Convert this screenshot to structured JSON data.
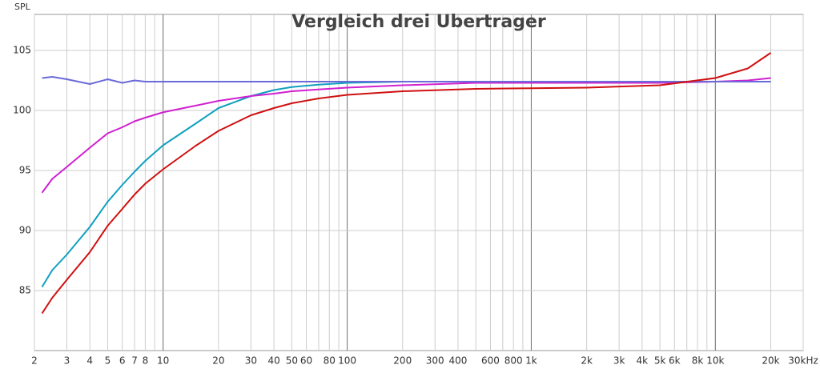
{
  "chart_data": {
    "type": "line",
    "title": "Vergleich drei Ubertrager",
    "y_label": "SPL",
    "log_x": true,
    "xlim": [
      2,
      30000
    ],
    "xticks": [
      2,
      3,
      4,
      5,
      6,
      7,
      8,
      10,
      20,
      30,
      40,
      50,
      60,
      80,
      100,
      200,
      300,
      400,
      600,
      800,
      {
        "value": 1000,
        "label": "1k"
      },
      {
        "value": 2000,
        "label": "2k"
      },
      {
        "value": 3000,
        "label": "3k"
      },
      {
        "value": 4000,
        "label": "4k"
      },
      {
        "value": 5000,
        "label": "5k"
      },
      {
        "value": 6000,
        "label": "6k"
      },
      {
        "value": 8000,
        "label": "8k"
      },
      {
        "value": 10000,
        "label": "10k"
      },
      {
        "value": 20000,
        "label": "20k"
      },
      {
        "value": 30000,
        "label": "30kHz"
      }
    ],
    "x_minor_gridlines": [
      9,
      70,
      90,
      500,
      700,
      900,
      7000,
      9000
    ],
    "x_major_gridlines": [
      10,
      100,
      1000,
      10000
    ],
    "ylim": [
      80,
      108
    ],
    "yticks": [
      85,
      90,
      95,
      100,
      105
    ],
    "grid": true,
    "x": [
      2.2,
      2.5,
      3,
      4,
      5,
      6,
      7,
      8,
      10,
      15,
      20,
      30,
      40,
      50,
      70,
      100,
      200,
      500,
      1000,
      2000,
      5000,
      10000,
      15000,
      20000
    ],
    "series": [
      {
        "color": "#10a0c0",
        "values": [
          85.3,
          86.7,
          88.0,
          90.3,
          92.4,
          93.8,
          94.9,
          95.8,
          97.1,
          98.9,
          100.2,
          101.2,
          101.7,
          101.95,
          102.15,
          102.3,
          102.4,
          102.4,
          102.4,
          102.4,
          102.4,
          102.4,
          102.4,
          102.4
        ]
      },
      {
        "color": "#d020d0",
        "values": [
          93.15,
          94.3,
          95.3,
          96.9,
          98.1,
          98.6,
          99.1,
          99.4,
          99.85,
          100.4,
          100.8,
          101.2,
          101.4,
          101.6,
          101.75,
          101.9,
          102.1,
          102.3,
          102.3,
          102.3,
          102.3,
          102.4,
          102.5,
          102.7
        ]
      },
      {
        "color": "#6a6ad8",
        "values": [
          102.7,
          102.8,
          102.6,
          102.2,
          102.6,
          102.3,
          102.5,
          102.4,
          102.4,
          102.4,
          102.4,
          102.4,
          102.4,
          102.4,
          102.4,
          102.4,
          102.4,
          102.4,
          102.4,
          102.4,
          102.4,
          102.4,
          102.4,
          102.4
        ]
      },
      {
        "color": "#d01010",
        "values": [
          83.1,
          84.4,
          85.9,
          88.2,
          90.4,
          91.8,
          93.0,
          93.9,
          95.1,
          97.05,
          98.3,
          99.6,
          100.2,
          100.6,
          101.0,
          101.3,
          101.6,
          101.8,
          101.85,
          101.9,
          102.1,
          102.7,
          103.5,
          104.8
        ]
      }
    ]
  }
}
